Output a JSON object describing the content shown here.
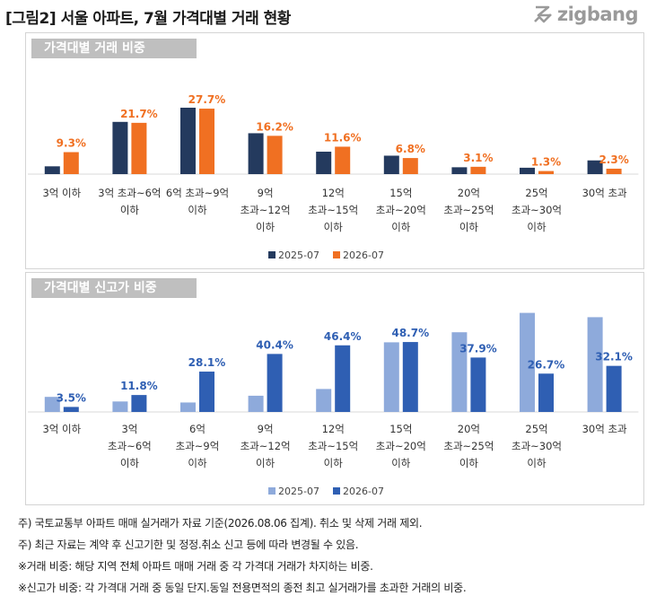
{
  "page": {
    "title": "[그림2] 서울 아파트, 7월 가격대별 거래 현황",
    "logo_text": "zigbang"
  },
  "notes": [
    "주) 국토교통부 아파트 매매 실거래가 자료 기준(2026.08.06 집계). 취소 및 삭제 거래 제외.",
    "주) 최근 자료는 계약 후 신고기한 및 정정.취소 신고 등에 따라 변경될 수 있음.",
    "※거래 비중: 해당 지역 전체 아파트 매매 거래 중 각 가격대 거래가 차지하는 비중.",
    "※신고가 비중: 각 가격대 거래 중 동일 단지.동일 전용면적의 종전 최고 실거래가를 초과한 거래의 비중."
  ],
  "chart_data": [
    {
      "type": "bar",
      "title": "가격대별 거래 비중",
      "categories": [
        [
          "3억 이하"
        ],
        [
          "3억 초과~6억",
          "이하"
        ],
        [
          "6억 초과~9억",
          "이하"
        ],
        [
          "9억",
          "초과~12억",
          "이하"
        ],
        [
          "12억",
          "초과~15억",
          "이하"
        ],
        [
          "15억",
          "초과~20억",
          "이하"
        ],
        [
          "20억",
          "초과~25억",
          "이하"
        ],
        [
          "25억",
          "초과~30억",
          "이하"
        ],
        [
          "30억 초과"
        ]
      ],
      "series": [
        {
          "name": "2025-07",
          "color": "#243a5e",
          "values": [
            3.3,
            22.1,
            28.1,
            17.3,
            9.5,
            7.8,
            2.9,
            2.7,
            5.8
          ]
        },
        {
          "name": "2026-07",
          "color": "#f07022",
          "values": [
            9.3,
            21.7,
            27.7,
            16.2,
            11.6,
            6.8,
            3.1,
            1.3,
            2.3
          ]
        }
      ],
      "data_labels": [
        "9.3%",
        "21.7%",
        "27.7%",
        "16.2%",
        "11.6%",
        "6.8%",
        "3.1%",
        "1.3%",
        "2.3%"
      ],
      "label_color": "#f07022",
      "ylim": [
        0,
        30
      ],
      "legend_position": "bottom"
    },
    {
      "type": "bar",
      "title": "가격대별 신고가 비중",
      "categories": [
        [
          "3억 이하"
        ],
        [
          "3억",
          "초과~6억",
          "이하"
        ],
        [
          "6억",
          "초과~9억",
          "이하"
        ],
        [
          "9억",
          "초과~12억",
          "이하"
        ],
        [
          "12억",
          "초과~15억",
          "이하"
        ],
        [
          "15억",
          "초과~20억",
          "이하"
        ],
        [
          "20억",
          "초과~25억",
          "이하"
        ],
        [
          "25억",
          "초과~30억",
          "이하"
        ],
        [
          "30억 초과"
        ]
      ],
      "series": [
        {
          "name": "2025-07",
          "color": "#8eaadb",
          "values": [
            10.5,
            7.3,
            6.6,
            11.3,
            16.0,
            48.5,
            55.5,
            69.0,
            66.0
          ]
        },
        {
          "name": "2026-07",
          "color": "#2f5fb3",
          "values": [
            3.5,
            11.8,
            28.1,
            40.4,
            46.4,
            48.7,
            37.9,
            26.7,
            32.1
          ]
        }
      ],
      "data_labels": [
        "3.5%",
        "11.8%",
        "28.1%",
        "40.4%",
        "46.4%",
        "48.7%",
        "37.9%",
        "26.7%",
        "32.1%"
      ],
      "label_color": "#2f5fb3",
      "ylim": [
        0,
        70
      ],
      "legend_position": "bottom"
    }
  ]
}
